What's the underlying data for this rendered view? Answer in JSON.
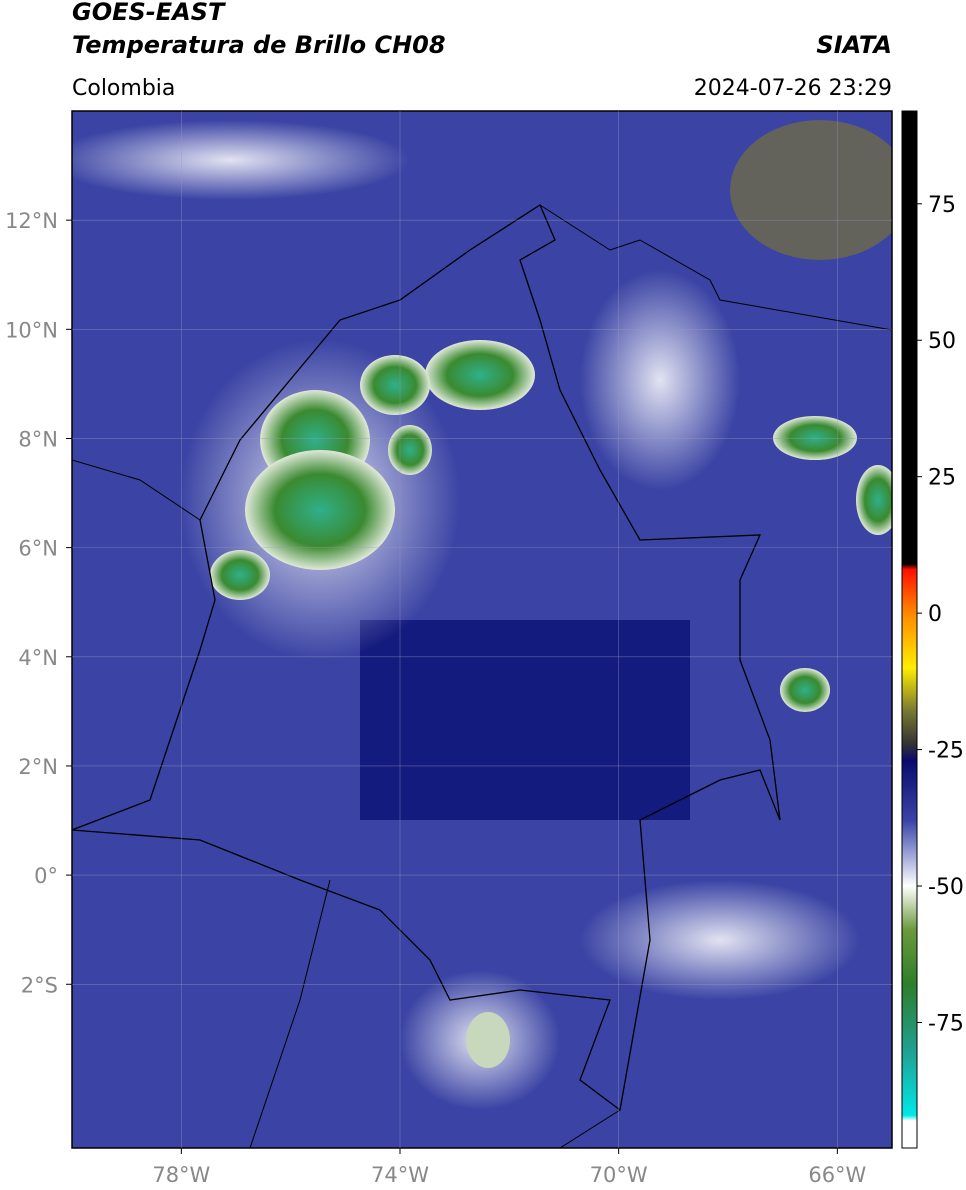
{
  "header": {
    "title": "GOES-EAST",
    "subtitle": "Temperatura de Brillo CH08",
    "source": "SIATA",
    "region": "Colombia",
    "datetime": "2024-07-26 23:29"
  },
  "map": {
    "xlim": [
      -80,
      -65
    ],
    "ylim": [
      -5,
      14
    ],
    "xticks": [
      {
        "value": -78,
        "label": "78°W"
      },
      {
        "value": -74,
        "label": "74°W"
      },
      {
        "value": -70,
        "label": "70°W"
      },
      {
        "value": -66,
        "label": "66°W"
      }
    ],
    "yticks": [
      {
        "value": 12,
        "label": "12°N"
      },
      {
        "value": 10,
        "label": "10°N"
      },
      {
        "value": 8,
        "label": "8°N"
      },
      {
        "value": 6,
        "label": "6°N"
      },
      {
        "value": 4,
        "label": "4°N"
      },
      {
        "value": 2,
        "label": "2°N"
      },
      {
        "value": 0,
        "label": "0°"
      },
      {
        "value": -2,
        "label": "2°S"
      }
    ],
    "grid": true
  },
  "colorbar": {
    "lim": [
      -98,
      92
    ],
    "ticks": [
      75,
      50,
      25,
      0,
      -25,
      -50,
      -75
    ],
    "colormap": [
      {
        "value": 92,
        "color": "#000000"
      },
      {
        "value": 9,
        "color": "#000000"
      },
      {
        "value": 8,
        "color": "#ff1000"
      },
      {
        "value": 0,
        "color": "#ff8800"
      },
      {
        "value": -10,
        "color": "#ffee00"
      },
      {
        "value": -18,
        "color": "#777733"
      },
      {
        "value": -24,
        "color": "#333333"
      },
      {
        "value": -27,
        "color": "#0a0a6e"
      },
      {
        "value": -38,
        "color": "#3a44a8"
      },
      {
        "value": -45,
        "color": "#aab0dd"
      },
      {
        "value": -50,
        "color": "#ffffff"
      },
      {
        "value": -58,
        "color": "#6a9a3c"
      },
      {
        "value": -68,
        "color": "#2e7e2a"
      },
      {
        "value": -80,
        "color": "#20a090"
      },
      {
        "value": -92,
        "color": "#00e8e8"
      },
      {
        "value": -93,
        "color": "#ffffff"
      },
      {
        "value": -98,
        "color": "#ffffff"
      }
    ]
  }
}
